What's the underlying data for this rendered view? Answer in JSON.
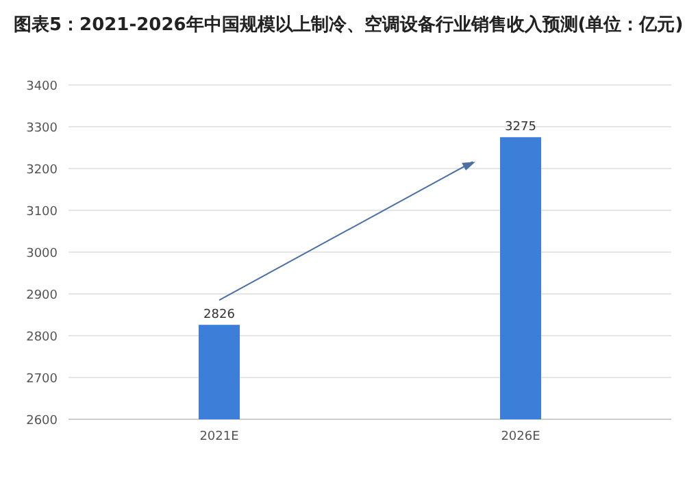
{
  "chart_data": {
    "type": "bar",
    "title": "图表5：2021-2026年中国规模以上制冷、空调设备行业销售收入预测(单位：亿元)",
    "categories": [
      "2021E",
      "2026E"
    ],
    "values": [
      2826,
      3275
    ],
    "color": "#3b7fd9",
    "ylim": [
      2600,
      3400
    ],
    "yticks": [
      2600,
      2700,
      2800,
      2900,
      3000,
      3100,
      3200,
      3300,
      3400
    ],
    "grid": "y",
    "data_labels": true
  }
}
